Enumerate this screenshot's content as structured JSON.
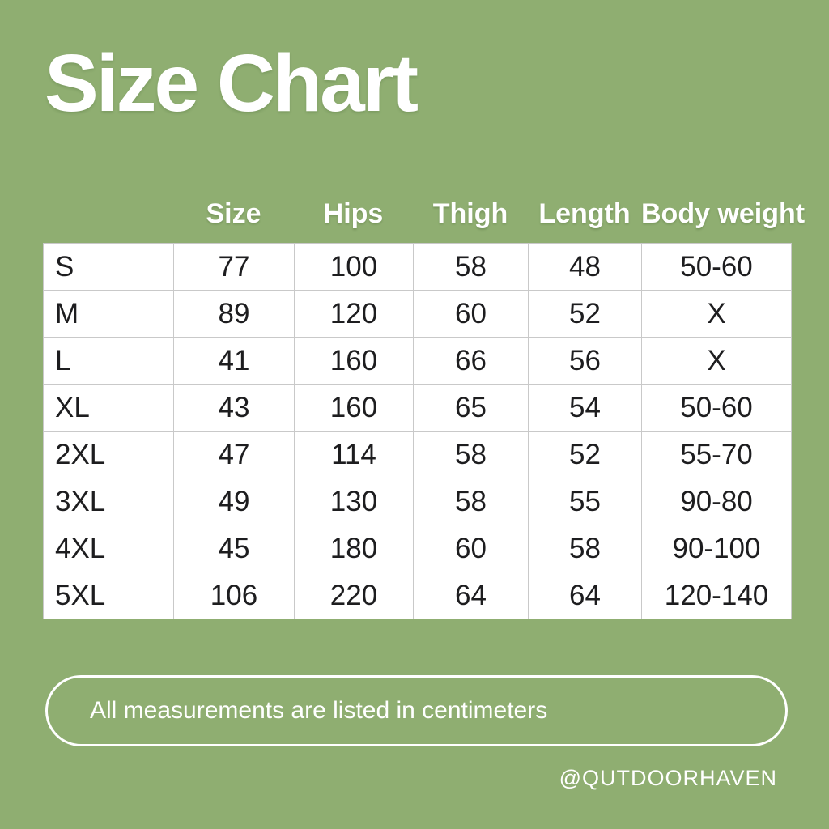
{
  "colors": {
    "background": "#8FAE71",
    "table_background": "#FFFFFF",
    "table_border": "#C9C9C9",
    "table_text": "#1D1D1F",
    "light_text": "#FFFFFF"
  },
  "title": "Size Chart",
  "chart_data": {
    "type": "table",
    "title": "Size Chart",
    "columns": [
      "",
      "Size",
      "Hips",
      "Thigh",
      "Length",
      "Body weight"
    ],
    "rows": [
      [
        "S",
        "77",
        "100",
        "58",
        "48",
        "50-60"
      ],
      [
        "M",
        "89",
        "120",
        "60",
        "52",
        "X"
      ],
      [
        "L",
        "41",
        "160",
        "66",
        "56",
        "X"
      ],
      [
        "XL",
        "43",
        "160",
        "65",
        "54",
        "50-60"
      ],
      [
        "2XL",
        "47",
        "114",
        "58",
        "52",
        "55-70"
      ],
      [
        "3XL",
        "49",
        "130",
        "58",
        "55",
        "90-80"
      ],
      [
        "4XL",
        "45",
        "180",
        "60",
        "58",
        "90-100"
      ],
      [
        "5XL",
        "106",
        "220",
        "64",
        "64",
        "120-140"
      ]
    ],
    "note": "All measurements are listed in centimeters"
  },
  "footer": {
    "note": "All measurements are listed in centimeters",
    "handle": "@QUTDOORHAVEN"
  }
}
